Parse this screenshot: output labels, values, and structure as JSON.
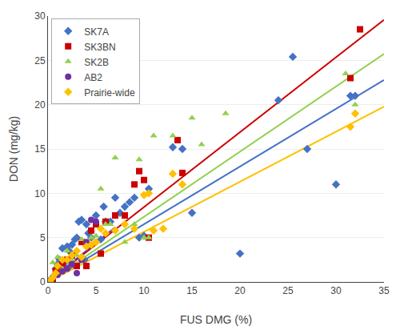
{
  "chart_data": {
    "type": "scatter",
    "xlabel": "FUS DMG (%)",
    "ylabel": "DON (mg/kg)",
    "xlim": [
      0,
      35
    ],
    "ylim": [
      0,
      30
    ],
    "xticks": [
      0,
      5,
      10,
      15,
      20,
      25,
      30,
      35
    ],
    "yticks": [
      0,
      5,
      10,
      15,
      20,
      25,
      30
    ],
    "grid": "y",
    "legend": "upper left",
    "series": [
      {
        "name": "SK7A",
        "color": "#4472C4",
        "marker": "diamond",
        "x": [
          0.3,
          0.5,
          0.8,
          1.0,
          1.2,
          1.5,
          1.8,
          2.0,
          2.2,
          2.5,
          2.8,
          3.0,
          3.2,
          3.5,
          3.8,
          4.0,
          4.2,
          4.5,
          5.0,
          5.5,
          5.8,
          6.0,
          6.5,
          7.0,
          7.5,
          8.0,
          8.5,
          9.0,
          9.5,
          10.0,
          10.5,
          13.0,
          14.0,
          15.0,
          20.0,
          24.0,
          25.5,
          27.0,
          30.0,
          31.5,
          32.0
        ],
        "values": [
          0.3,
          0.5,
          1.5,
          2.0,
          2.5,
          3.8,
          2.2,
          4.0,
          3.5,
          4.2,
          4.8,
          5.0,
          6.8,
          7.0,
          2.5,
          6.5,
          5.5,
          5.0,
          7.5,
          4.8,
          8.5,
          6.8,
          6.8,
          9.5,
          7.8,
          8.5,
          9.0,
          9.5,
          5.0,
          5.2,
          10.5,
          15.2,
          15.0,
          7.8,
          3.2,
          20.5,
          25.4,
          15.0,
          11.0,
          21.0,
          21.0
        ],
        "fit_x": [
          0,
          35
        ],
        "fit_values": [
          0,
          22.785
        ]
      },
      {
        "name": "SK3BN",
        "color": "#CC0000",
        "marker": "square",
        "x": [
          0.2,
          0.5,
          0.8,
          1.0,
          1.5,
          2.0,
          2.5,
          3.0,
          3.5,
          4.0,
          4.5,
          5.0,
          5.5,
          6.0,
          7.0,
          8.0,
          9.0,
          9.5,
          10.0,
          10.5,
          13.5,
          14.0,
          31.5,
          32.5
        ],
        "values": [
          0.1,
          0.3,
          1.2,
          1.5,
          2.0,
          2.5,
          3.0,
          1.8,
          4.5,
          1.8,
          5.8,
          6.5,
          3.2,
          6.8,
          7.5,
          7.5,
          11.0,
          12.5,
          11.5,
          5.0,
          16.0,
          12.3,
          23.0,
          28.5
        ],
        "fit_x": [
          0,
          35
        ],
        "fit_values": [
          0,
          29.575
        ]
      },
      {
        "name": "SK2B",
        "color": "#92D050",
        "marker": "triangle-up",
        "x": [
          0.5,
          1.0,
          1.5,
          2.0,
          2.5,
          3.0,
          3.5,
          4.0,
          4.5,
          5.0,
          5.5,
          6.0,
          6.5,
          7.0,
          8.0,
          9.0,
          9.5,
          10.0,
          10.5,
          11.0,
          13.0,
          15.0,
          16.0,
          18.5,
          31.0,
          32.0
        ],
        "values": [
          2.2,
          2.8,
          1.5,
          3.5,
          2.5,
          3.0,
          4.8,
          4.5,
          5.0,
          5.2,
          10.5,
          6.5,
          6.5,
          14.0,
          4.5,
          6.5,
          13.8,
          5.0,
          5.0,
          16.5,
          16.5,
          18.5,
          15.5,
          19.0,
          23.5,
          20.0
        ],
        "fit_x": [
          0,
          35
        ],
        "fit_values": [
          0,
          25.725
        ]
      },
      {
        "name": "AB2",
        "color": "#7030A0",
        "marker": "circle",
        "x": [
          0.2,
          0.5,
          1.0,
          1.5,
          2.0,
          2.5,
          3.0,
          3.5,
          4.0,
          4.5,
          5.0
        ],
        "values": [
          0.1,
          0.5,
          0.8,
          1.2,
          1.5,
          2.0,
          1.0,
          2.5,
          4.5,
          7.0,
          6.8
        ],
        "fit_x": [
          0,
          7
        ],
        "fit_values": [
          0,
          6.16
        ]
      },
      {
        "name": "Prairie-wide",
        "color": "#FFC000",
        "marker": "diamond",
        "x": [
          0.2,
          0.5,
          0.8,
          1.0,
          1.5,
          2.0,
          2.5,
          3.0,
          3.5,
          4.0,
          4.5,
          5.0,
          5.5,
          6.0,
          7.0,
          8.0,
          9.0,
          10.0,
          10.5,
          11.0,
          12.0,
          13.0,
          14.0,
          31.5,
          32.0
        ],
        "values": [
          0.1,
          0.5,
          1.0,
          1.8,
          2.5,
          2.5,
          3.0,
          3.5,
          2.8,
          4.0,
          4.2,
          4.5,
          6.0,
          5.5,
          5.8,
          6.5,
          6.0,
          9.8,
          10.0,
          5.8,
          6.0,
          12.2,
          11.0,
          17.5,
          19.0
        ],
        "fit_x": [
          0,
          35
        ],
        "fit_values": [
          0,
          19.775
        ]
      }
    ]
  }
}
